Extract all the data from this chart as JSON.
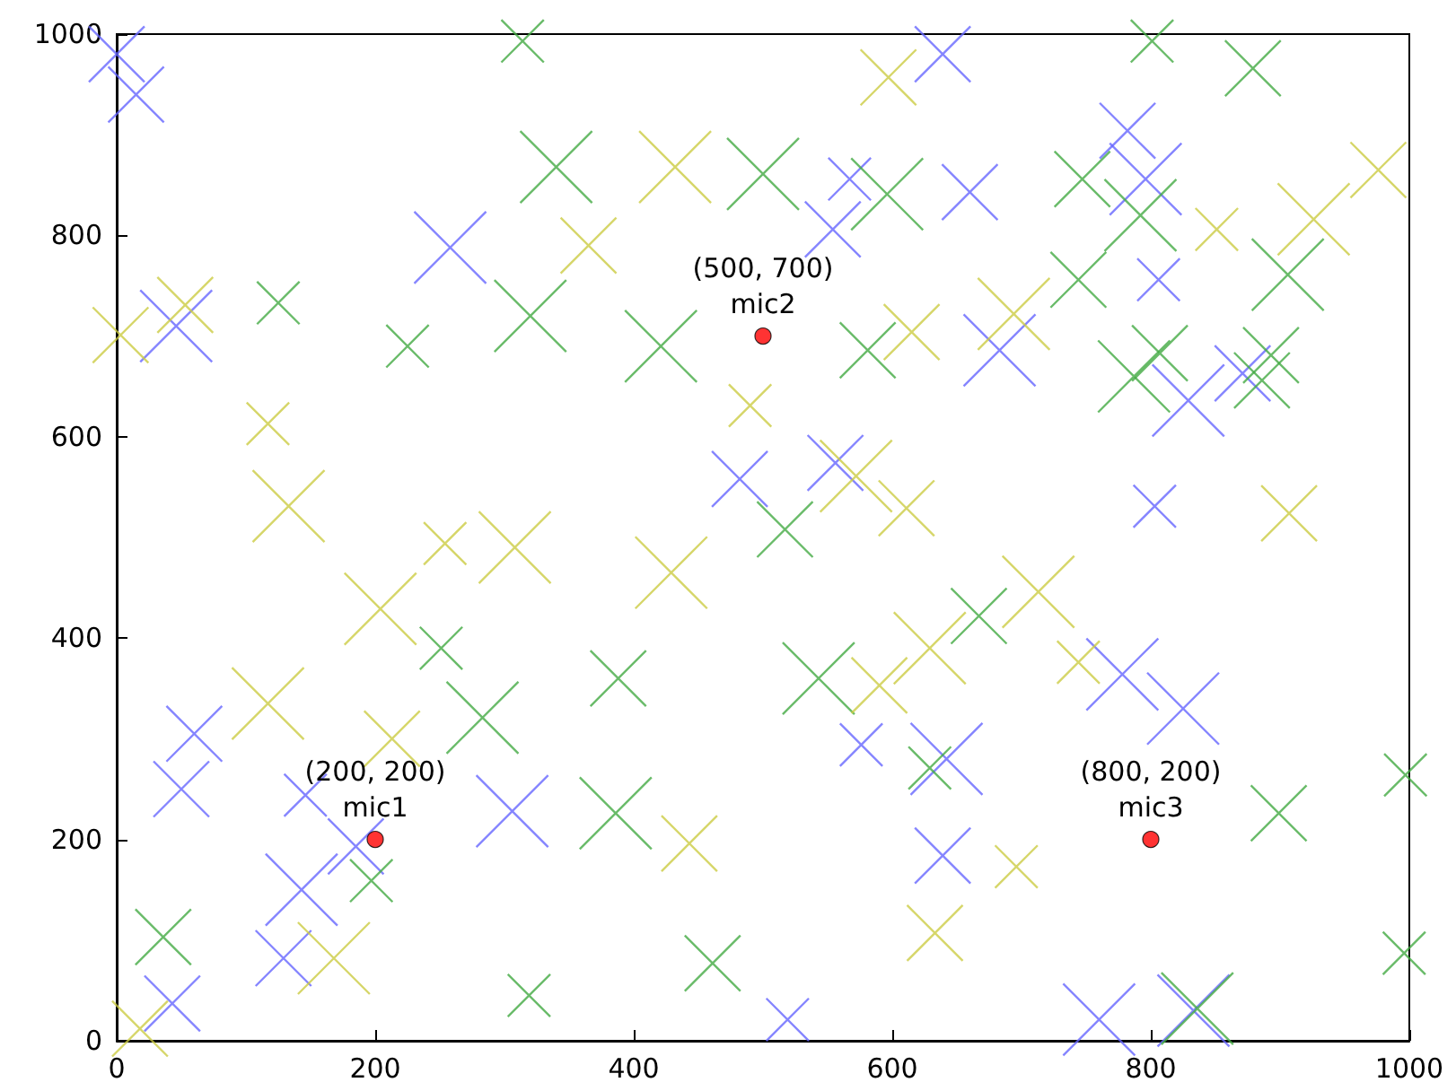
{
  "chart_data": {
    "type": "bubble",
    "xlim": [
      0,
      1000
    ],
    "ylim": [
      0,
      1000
    ],
    "xticks": [
      0,
      200,
      400,
      600,
      800,
      1000
    ],
    "yticks": [
      0,
      200,
      400,
      600,
      800,
      1000
    ],
    "grid": false,
    "series": [
      {
        "color": "#6666ff",
        "marker": "cross",
        "x": [
          0,
          15,
          46,
          258,
          567,
          554,
          660,
          639,
          482,
          556,
          782,
          796,
          806,
          683,
          829,
          871,
          803,
          60,
          50,
          146,
          185,
          143,
          129,
          43,
          306,
          576,
          642,
          639,
          519,
          778,
          825,
          760,
          833
        ],
        "values": [
          980,
          940,
          710,
          788,
          856,
          806,
          843,
          980,
          558,
          574,
          904,
          856,
          756,
          686,
          636,
          663,
          531,
          305,
          250,
          244,
          193,
          150,
          82,
          37,
          228,
          294,
          280,
          184,
          21,
          364,
          330,
          21,
          30
        ],
        "sizes": [
          0.6,
          0.6,
          1,
          1,
          0.35,
          0.6,
          0.6,
          0.6,
          0.6,
          0.6,
          0.6,
          1,
          0.35,
          1,
          1,
          0.6,
          0.35,
          0.6,
          0.6,
          0.35,
          0.6,
          1,
          0.6,
          0.6,
          1,
          0.35,
          1,
          0.6,
          0.35,
          1,
          1,
          1,
          1
        ]
      },
      {
        "color": "#44aa44",
        "marker": "cross",
        "x": [
          314,
          125,
          225,
          320,
          340,
          500,
          596,
          581,
          421,
          517,
          801,
          879,
          747,
          792,
          744,
          906,
          787,
          807,
          893,
          886,
          251,
          283,
          197,
          36,
          319,
          388,
          543,
          386,
          461,
          629,
          667,
          899,
          997,
          996,
          836
        ],
        "values": [
          993,
          733,
          690,
          720,
          868,
          861,
          841,
          686,
          690,
          508,
          993,
          966,
          856,
          820,
          756,
          761,
          660,
          683,
          681,
          656,
          390,
          321,
          159,
          103,
          45,
          360,
          360,
          226,
          77,
          271,
          422,
          226,
          264,
          87,
          32
        ],
        "sizes": [
          0.35,
          0.35,
          0.35,
          1,
          1,
          1,
          1,
          0.6,
          1,
          0.6,
          0.35,
          0.6,
          0.6,
          1,
          0.6,
          1,
          1,
          0.6,
          0.6,
          0.6,
          0.35,
          1,
          0.35,
          0.6,
          0.35,
          0.6,
          1,
          1,
          0.6,
          0.35,
          0.6,
          0.6,
          0.35,
          0.35,
          1
        ]
      },
      {
        "color": "#cccc44",
        "marker": "cross",
        "x": [
          3,
          53,
          117,
          133,
          597,
          432,
          365,
          615,
          490,
          572,
          611,
          976,
          926,
          851,
          694,
          907,
          254,
          308,
          204,
          117,
          213,
          168,
          18,
          429,
          629,
          590,
          443,
          633,
          713,
          744,
          696
        ],
        "values": [
          701,
          731,
          613,
          531,
          957,
          868,
          790,
          704,
          631,
          561,
          529,
          865,
          816,
          806,
          722,
          524,
          494,
          490,
          429,
          335,
          300,
          82,
          12,
          465,
          390,
          353,
          196,
          107,
          446,
          376,
          173
        ],
        "sizes": [
          0.6,
          0.6,
          0.35,
          1,
          0.6,
          1,
          0.6,
          0.6,
          0.35,
          1,
          0.6,
          0.6,
          1,
          0.35,
          1,
          0.6,
          0.35,
          1,
          1,
          1,
          0.6,
          1,
          0.6,
          1,
          1,
          0.6,
          0.6,
          0.6,
          1,
          0.35,
          0.35
        ]
      },
      {
        "type": "scatter",
        "color": "#ff0000",
        "marker": "circle",
        "x": [
          200,
          500,
          800
        ],
        "values": [
          200,
          700,
          200
        ]
      }
    ],
    "annotations": [
      {
        "text": "(200, 200)\nmic1",
        "x": 200,
        "y": 200
      },
      {
        "text": "(500, 700)\nmic2",
        "x": 500,
        "y": 700
      },
      {
        "text": "(800, 200)\nmic3",
        "x": 800,
        "y": 200
      }
    ]
  }
}
